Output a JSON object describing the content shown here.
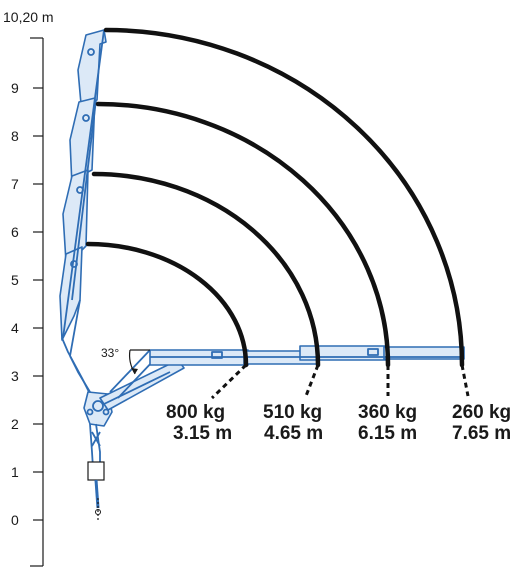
{
  "axis": {
    "top_label": "10,20 m",
    "ticks": [
      "0",
      "1",
      "2",
      "3",
      "4",
      "5",
      "6",
      "7",
      "8",
      "9"
    ]
  },
  "angle": {
    "label": "33°"
  },
  "loads": [
    {
      "weight": "800 kg",
      "radius": "3.15 m"
    },
    {
      "weight": "510 kg",
      "radius": "4.65 m"
    },
    {
      "weight": "360 kg",
      "radius": "6.15 m"
    },
    {
      "weight": "260 kg",
      "radius": "7.65 m"
    }
  ],
  "colors": {
    "boom": "#2f6db4",
    "arcs": "#111111"
  }
}
